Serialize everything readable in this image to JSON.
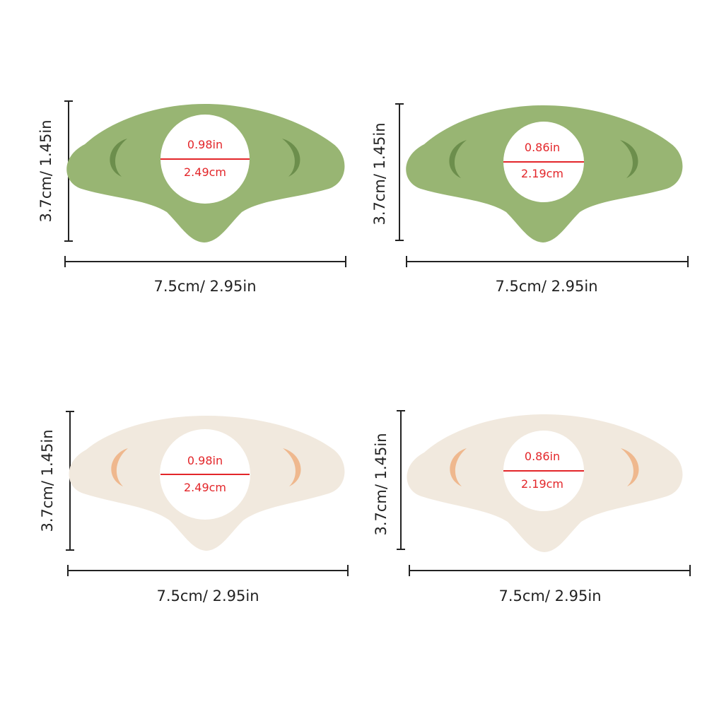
{
  "colors": {
    "green_body": "#98b573",
    "green_cutout": "#6c8e4c",
    "cream_body": "#f1e9de",
    "cream_cutout": "#efb88e",
    "measure_line": "#e3262a",
    "dimension_line": "#222222"
  },
  "panels": [
    {
      "variant": "green",
      "height_label": "3.7cm/ 1.45in",
      "width_label": "7.5cm/ 2.95in",
      "diameter_in": "0.98in",
      "diameter_cm": "2.49cm"
    },
    {
      "variant": "green",
      "height_label": "3.7cm/ 1.45in",
      "width_label": "7.5cm/ 2.95in",
      "diameter_in": "0.86in",
      "diameter_cm": "2.19cm"
    },
    {
      "variant": "cream",
      "height_label": "3.7cm/ 1.45in",
      "width_label": "7.5cm/ 2.95in",
      "diameter_in": "0.98in",
      "diameter_cm": "2.49cm"
    },
    {
      "variant": "cream",
      "height_label": "3.7cm/ 1.45in",
      "width_label": "7.5cm/ 2.95in",
      "diameter_in": "0.86in",
      "diameter_cm": "2.19cm"
    }
  ]
}
